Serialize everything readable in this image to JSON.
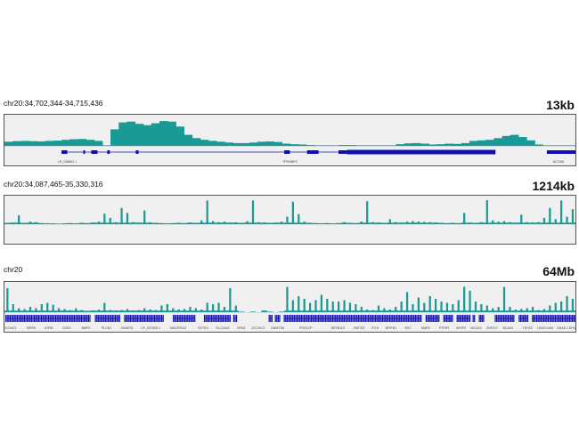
{
  "colors": {
    "signal": "#1a9a96",
    "gene": "#1010b0",
    "background": "#f0f0f0",
    "border": "#555555"
  },
  "chart_data": [
    {
      "type": "area",
      "title": "chr20:34,702,344-34,715,436",
      "scale_label": "13kb",
      "xlim": [
        34702344,
        34715436
      ],
      "signal": [
        15,
        17,
        18,
        17,
        16,
        18,
        19,
        22,
        24,
        25,
        22,
        18,
        2,
        60,
        85,
        88,
        80,
        75,
        82,
        90,
        88,
        70,
        40,
        28,
        22,
        18,
        15,
        12,
        10,
        10,
        12,
        15,
        16,
        14,
        8,
        6,
        5,
        3,
        2,
        2,
        2,
        3,
        3,
        2,
        2,
        2,
        2,
        2,
        6,
        9,
        10,
        8,
        5,
        6,
        8,
        7,
        10,
        18,
        20,
        22,
        28,
        36,
        40,
        32,
        20,
        5,
        2,
        2,
        2,
        2
      ],
      "gene_lines": [
        [
          34703653,
          34713603
        ],
        [
          34714781,
          34715436
        ]
      ],
      "exons": [
        [
          34703653,
          34703784
        ],
        [
          34704151,
          34704190
        ],
        [
          34704334,
          34704478
        ],
        [
          34704701,
          34704760
        ],
        [
          34705355,
          34705420
        ],
        [
          34708759,
          34708890
        ],
        [
          34709283,
          34709545
        ],
        [
          34710003,
          34710199
        ],
        [
          34710199,
          34713603
        ],
        [
          34714781,
          34715436
        ]
      ],
      "genes": [
        {
          "name": "LR_038802.1",
          "pos": 34703784
        },
        {
          "name": "TP53INP2",
          "pos": 34708890
        },
        {
          "name": "NCOA6",
          "pos": 34715043
        }
      ]
    },
    {
      "type": "area",
      "title": "chr20:34,087,465-35,330,316",
      "scale_label": "1214kb",
      "xlim": [
        34087465,
        35330316
      ],
      "signal": [
        5,
        6,
        35,
        5,
        10,
        8,
        4,
        3,
        3,
        2,
        3,
        4,
        3,
        5,
        4,
        6,
        10,
        42,
        25,
        8,
        65,
        45,
        8,
        6,
        55,
        7,
        5,
        4,
        3,
        4,
        5,
        4,
        6,
        5,
        15,
        95,
        12,
        8,
        10,
        6,
        7,
        5,
        12,
        95,
        8,
        6,
        5,
        6,
        10,
        30,
        90,
        40,
        10,
        5,
        4,
        3,
        4,
        3,
        4,
        8,
        5,
        4,
        10,
        92,
        8,
        6,
        5,
        20,
        8,
        6,
        10,
        12,
        10,
        9,
        8,
        6,
        5,
        4,
        5,
        4,
        45,
        6,
        5,
        8,
        96,
        15,
        10,
        12,
        8,
        6,
        38,
        8,
        6,
        8,
        25,
        65,
        20,
        95,
        30,
        60
      ],
      "gene_blocks": [
        [
          34.088,
          34.125
        ],
        [
          34.205,
          34.445
        ],
        [
          34.51,
          35.02
        ],
        [
          35.04,
          35.23
        ],
        [
          35.245,
          35.33
        ]
      ],
      "genes": [
        {
          "name": "EIF2S2",
          "pos": 34.1
        },
        {
          "name": "ASIP",
          "pos": 34.224
        },
        {
          "name": "AHCY",
          "pos": 34.266
        },
        {
          "name": "AHCY",
          "pos": 34.301
        },
        {
          "name": "ITCH",
          "pos": 34.406
        },
        {
          "name": "ITCH",
          "pos": 34.44
        },
        {
          "name": "ITCH",
          "pos": 34.473
        },
        {
          "name": "DYNLRB1",
          "pos": 34.535
        },
        {
          "name": "PIGU",
          "pos": 34.597
        },
        {
          "name": "PIGU",
          "pos": 34.634
        },
        {
          "name": "LR_038802.1",
          "pos": 34.715
        },
        {
          "name": "NCOA6",
          "pos": 34.75
        },
        {
          "name": "NCOA6",
          "pos": 34.79
        },
        {
          "name": "HMGB3P1",
          "pos": 34.842
        },
        {
          "name": "ACSS2",
          "pos": 34.91
        },
        {
          "name": "GSS",
          "pos": 34.948
        },
        {
          "name": "MYH7B",
          "pos": 34.985
        },
        {
          "name": "TRPC4AP",
          "pos": 35.03
        },
        {
          "name": "EDEM2",
          "pos": 35.131
        },
        {
          "name": "MMP24-AS1-EDEM2",
          "pos": 35.194
        },
        {
          "name": "MMP24",
          "pos": 35.262
        },
        {
          "name": "GDF5",
          "pos": 35.314
        }
      ]
    },
    {
      "type": "area",
      "title": "chr20",
      "scale_label": "64Mb",
      "xlim": [
        0,
        64.4
      ],
      "signal": [
        90,
        30,
        15,
        12,
        20,
        15,
        30,
        35,
        28,
        15,
        12,
        8,
        15,
        8,
        5,
        6,
        10,
        35,
        8,
        6,
        8,
        12,
        6,
        8,
        15,
        10,
        8,
        25,
        30,
        15,
        10,
        12,
        20,
        15,
        10,
        35,
        30,
        35,
        20,
        90,
        25,
        2,
        0,
        2,
        0,
        6,
        2,
        0,
        2,
        95,
        45,
        60,
        50,
        35,
        45,
        65,
        50,
        40,
        40,
        45,
        35,
        30,
        20,
        10,
        8,
        25,
        15,
        10,
        20,
        40,
        75,
        30,
        55,
        35,
        60,
        50,
        40,
        35,
        30,
        45,
        95,
        80,
        40,
        30,
        25,
        15,
        20,
        95,
        20,
        10,
        12,
        15,
        20,
        8,
        12,
        25,
        35,
        40,
        60,
        50
      ],
      "gene_blocks": [
        [
          0.1,
          9.6
        ],
        [
          10.2,
          13
        ],
        [
          13.5,
          18
        ],
        [
          19,
          21.5
        ],
        [
          22.5,
          25.5
        ],
        [
          25.8,
          26.2
        ],
        [
          29.8,
          30.2
        ],
        [
          30.5,
          31
        ],
        [
          31.5,
          47
        ],
        [
          47.5,
          49
        ],
        [
          49.5,
          50.5
        ],
        [
          51,
          52.5
        ],
        [
          52.8,
          53
        ],
        [
          53.5,
          54
        ],
        [
          55.3,
          57.5
        ],
        [
          58,
          59
        ],
        [
          59.5,
          64.4
        ]
      ],
      "genes": [
        {
          "name": "ZCCHC3",
          "pos": 0.6
        },
        {
          "name": "SIRPA",
          "pos": 3.0
        },
        {
          "name": "ATRN",
          "pos": 5.0
        },
        {
          "name": "CDS2",
          "pos": 7.0
        },
        {
          "name": "BMP2",
          "pos": 9.2
        },
        {
          "name": "PLCB1",
          "pos": 11.5
        },
        {
          "name": "SNAP25",
          "pos": 13.8
        },
        {
          "name": "LR_037005.1",
          "pos": 16.5
        },
        {
          "name": "MACROD2",
          "pos": 19.6
        },
        {
          "name": "SSTR4",
          "pos": 22.4
        },
        {
          "name": "SLC24A3",
          "pos": 24.6
        },
        {
          "name": "XRN2",
          "pos": 26.7
        },
        {
          "name": "ZCCHC3",
          "pos": 28.6
        },
        {
          "name": "DNMT3B",
          "pos": 30.8
        },
        {
          "name": "FRG1CP",
          "pos": 34.0
        },
        {
          "name": "DEFB119",
          "pos": 37.6
        },
        {
          "name": "ZNF337",
          "pos": 40.0
        },
        {
          "name": "ITCH",
          "pos": 41.8
        },
        {
          "name": "BPIFB1",
          "pos": 43.6
        },
        {
          "name": "SRC",
          "pos": 45.5
        },
        {
          "name": "MAFB",
          "pos": 47.5
        },
        {
          "name": "PTPRT",
          "pos": 49.6
        },
        {
          "name": "WISP2",
          "pos": 51.5
        },
        {
          "name": "NCOA3",
          "pos": 53.2
        },
        {
          "name": "ZNF217",
          "pos": 55.0
        },
        {
          "name": "BCAS4",
          "pos": 56.8
        },
        {
          "name": "TSHZ2",
          "pos": 59.0
        },
        {
          "name": "LINC01440",
          "pos": 61.0
        },
        {
          "name": "GNAS",
          "pos": 62.8
        },
        {
          "name": "CDH4",
          "pos": 63.9
        }
      ]
    }
  ]
}
